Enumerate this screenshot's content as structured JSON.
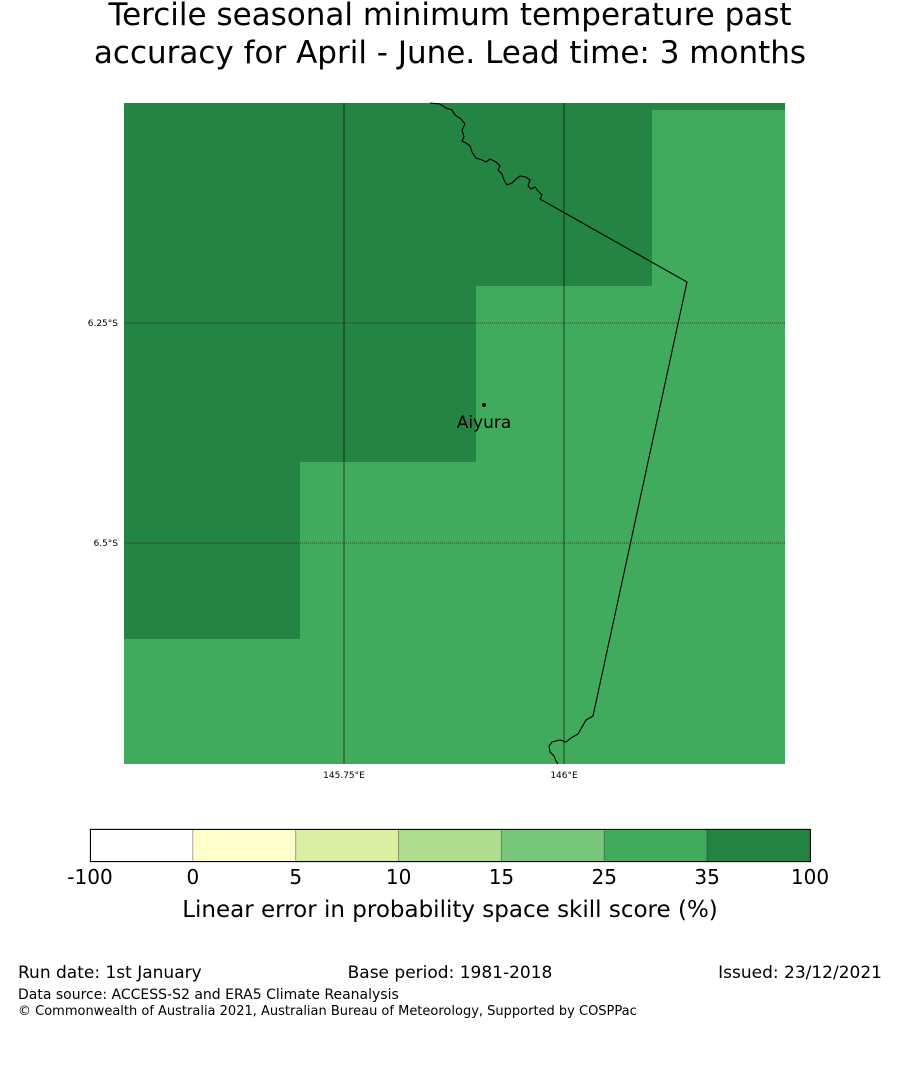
{
  "title": {
    "line1": "Tercile seasonal minimum temperature past",
    "line2": "accuracy for April - June. Lead time: 3 months"
  },
  "map": {
    "lat_labels": [
      "6.25°S",
      "6.5°S"
    ],
    "lon_labels": [
      "145.75°E",
      "146°E"
    ],
    "place": {
      "name": "Aiyura"
    },
    "colors": {
      "high": "#238443",
      "mid": "#41ab5d"
    }
  },
  "colorbar": {
    "title": "Linear error in probability space skill score (%)",
    "ticks": [
      "-100",
      "0",
      "5",
      "10",
      "15",
      "25",
      "35",
      "100"
    ],
    "colors": [
      "#ffffff",
      "#ffffcc",
      "#d9f0a3",
      "#addd8e",
      "#78c679",
      "#41ab5d",
      "#238443"
    ]
  },
  "footer": {
    "run_date": "Run date: 1st January",
    "base_period": "Base period: 1981-2018",
    "issued": "Issued: 23/12/2021",
    "data_source": "Data source: ACCESS-S2 and ERA5 Climate Reanalysis",
    "copyright": "© Commonwealth of Australia 2021, Australian Bureau of Meteorology, Supported by COSPPac"
  }
}
